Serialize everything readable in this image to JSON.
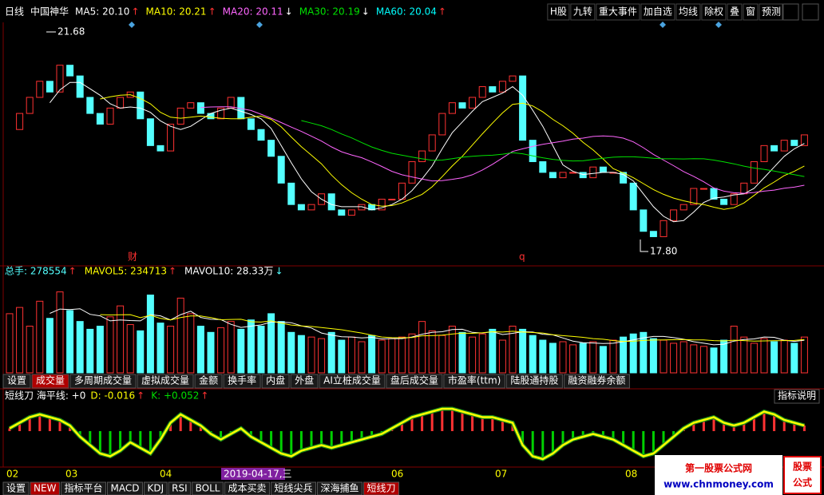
{
  "header": {
    "period": "日线",
    "name": "中国神华",
    "ma": [
      {
        "label": "MA5: 20.10",
        "arrow": "↑",
        "color": "#ffffff"
      },
      {
        "label": "MA10: 20.21",
        "arrow": "↑",
        "color": "#ffff00"
      },
      {
        "label": "MA20: 20.11",
        "arrow": "↓",
        "color": "#ff66ff"
      },
      {
        "label": "MA30: 20.19",
        "arrow": "↓",
        "color": "#00e000"
      },
      {
        "label": "MA60: 20.04",
        "arrow": "↑",
        "color": "#00ffff"
      }
    ],
    "toolbar": [
      "H股",
      "九转",
      "重大事件",
      "加自选",
      "均线",
      "除权",
      "叠",
      "窗",
      "预测"
    ]
  },
  "price": {
    "type": "candlestick",
    "closes": [
      20.0,
      20.3,
      20.6,
      20.9,
      20.7,
      21.2,
      21.0,
      20.6,
      20.3,
      20.1,
      20.4,
      20.6,
      20.7,
      20.2,
      19.7,
      19.6,
      20.1,
      20.4,
      20.5,
      20.3,
      20.2,
      20.4,
      20.6,
      20.2,
      20.0,
      19.8,
      19.5,
      19.0,
      18.6,
      18.5,
      18.6,
      18.8,
      18.5,
      18.4,
      18.5,
      18.6,
      18.5,
      18.7,
      18.7,
      19.0,
      19.4,
      19.6,
      19.9,
      20.3,
      20.5,
      20.4,
      20.6,
      20.8,
      20.7,
      20.9,
      21.0,
      19.8,
      19.4,
      19.2,
      19.1,
      19.2,
      19.2,
      19.1,
      19.3,
      19.2,
      19.2,
      19.0,
      18.5,
      18.1,
      18.0,
      18.3,
      18.5,
      18.6,
      18.9,
      18.9,
      18.7,
      18.6,
      18.8,
      19.0,
      19.4,
      19.7,
      19.6,
      19.8,
      19.7,
      19.9
    ],
    "ylim": [
      17.5,
      22.0
    ],
    "high_label": "21.68",
    "low_label": "17.80",
    "markers": [
      "财",
      "q"
    ]
  },
  "volume": {
    "type": "bar",
    "total_label": "总手: 278554",
    "total_arrow": "↑",
    "mavol5": "MAVOL5: 234713",
    "mavol5_arrow": "↑",
    "mavol10": "MAVOL10: 28.33万",
    "mavol10_arrow": "↓",
    "values": [
      380000,
      420000,
      300000,
      460000,
      350000,
      520000,
      400000,
      330000,
      280000,
      300000,
      360000,
      430000,
      310000,
      270000,
      500000,
      320000,
      300000,
      480000,
      380000,
      300000,
      260000,
      290000,
      330000,
      280000,
      340000,
      300000,
      380000,
      330000,
      260000,
      240000,
      230000,
      220000,
      260000,
      210000,
      230000,
      200000,
      240000,
      210000,
      220000,
      230000,
      250000,
      330000,
      270000,
      240000,
      300000,
      260000,
      230000,
      250000,
      280000,
      210000,
      300000,
      280000,
      240000,
      210000,
      190000,
      200000,
      180000,
      190000,
      200000,
      170000,
      210000,
      230000,
      250000,
      260000,
      220000,
      210000,
      190000,
      200000,
      180000,
      170000,
      160000,
      210000,
      300000,
      230000,
      190000,
      220000,
      200000,
      210000,
      190000,
      230000
    ],
    "ylim": [
      0,
      600000
    ],
    "tabs": [
      "设置",
      "成交量",
      "多周期成交量",
      "虚拟成交量",
      "金额",
      "换手率",
      "内盘",
      "外盘",
      "AI立桩成交量",
      "盘后成交量",
      "市盈率(ttm)",
      "陆股通持股",
      "融资融券余额"
    ]
  },
  "indicator": {
    "type": "bar",
    "label": "短线刀 海平线: +0",
    "d": "D: -0.016",
    "d_arrow": "↑",
    "k": "K: +0.052",
    "k_arrow": "↑",
    "help": "指标说明",
    "values": [
      0.1,
      0.3,
      0.5,
      0.6,
      0.5,
      0.4,
      0.2,
      -0.2,
      -0.5,
      -0.8,
      -0.9,
      -0.7,
      -0.4,
      -0.6,
      -0.8,
      -0.3,
      0.3,
      0.6,
      0.4,
      0.2,
      -0.1,
      -0.3,
      -0.1,
      0.1,
      -0.2,
      -0.4,
      -0.6,
      -0.8,
      -0.9,
      -0.7,
      -0.6,
      -0.5,
      -0.6,
      -0.5,
      -0.4,
      -0.3,
      -0.2,
      -0.1,
      0.1,
      0.3,
      0.5,
      0.6,
      0.7,
      0.8,
      0.8,
      0.7,
      0.6,
      0.5,
      0.5,
      0.4,
      0.3,
      -0.5,
      -0.9,
      -1.0,
      -0.8,
      -0.5,
      -0.3,
      -0.2,
      -0.1,
      -0.2,
      -0.3,
      -0.5,
      -0.7,
      -0.9,
      -0.8,
      -0.5,
      -0.2,
      0.1,
      0.3,
      0.4,
      0.5,
      0.3,
      0.2,
      0.3,
      0.5,
      0.7,
      0.6,
      0.4,
      0.3,
      0.2
    ],
    "ylim": [
      -1.2,
      1.0
    ]
  },
  "x_axis": [
    "02",
    "03",
    "04",
    "2019-04-17,三",
    "06",
    "07",
    "08"
  ],
  "bottom_tabs": [
    "设置",
    "NEW",
    "指标平台",
    "MACD",
    "KDJ",
    "RSI",
    "BOLL",
    "成本买卖",
    "短线尖兵",
    "深海捕鱼",
    "短线刀"
  ],
  "logo": {
    "title": "第一股票公式网",
    "url": "www.chnmoney.com",
    "badge1": "股票",
    "badge2": "公式"
  }
}
